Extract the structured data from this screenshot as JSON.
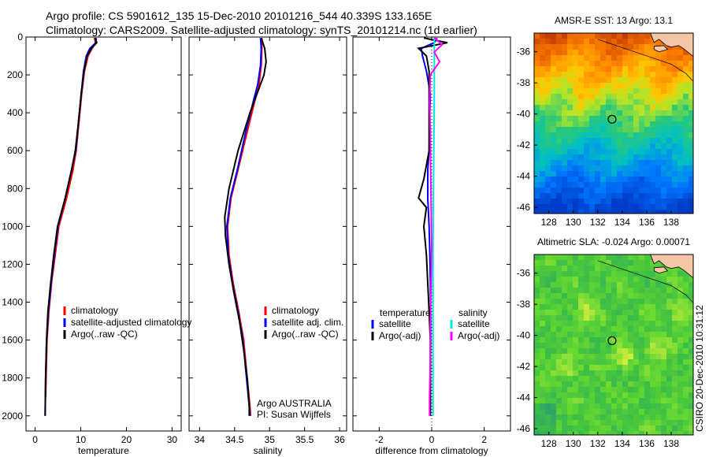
{
  "header": {
    "line1": "Argo profile: CS 5901612_135 15-Dec-2010 20101216_544 40.339S 133.165E",
    "line2": "Climatology: CARS2009. Satellite-adjusted climatology: synTS_20101214.nc (1d earlier)"
  },
  "stamp": "CSIRO 20-Dec-2010 10:31:12",
  "chart_data": [
    {
      "id": "temperature",
      "type": "line",
      "xlabel": "temperature",
      "ylabel": "",
      "xlim": [
        -2,
        32
      ],
      "ylim": [
        2080,
        0
      ],
      "y_inverted": true,
      "xticks": [
        0,
        10,
        20,
        30
      ],
      "yticks": [
        0,
        200,
        400,
        600,
        800,
        1000,
        1200,
        1400,
        1600,
        1800,
        2000
      ],
      "legend": {
        "placement": "lower-right",
        "entries": [
          "climatology",
          "satellite-adjusted climatology",
          "Argo(..raw -QC)"
        ]
      },
      "series": [
        {
          "name": "climatology",
          "color": "#ff0000",
          "points": [
            [
              13.0,
              5
            ],
            [
              13.2,
              30
            ],
            [
              12.5,
              60
            ],
            [
              11.6,
              100
            ],
            [
              10.8,
              180
            ],
            [
              10.2,
              300
            ],
            [
              9.6,
              450
            ],
            [
              9.0,
              600
            ],
            [
              8.3,
              700
            ],
            [
              6.9,
              850
            ],
            [
              5.2,
              1000
            ],
            [
              4.4,
              1150
            ],
            [
              3.6,
              1300
            ],
            [
              3.0,
              1450
            ],
            [
              2.6,
              1600
            ],
            [
              2.4,
              1800
            ],
            [
              2.3,
              1900
            ]
          ]
        },
        {
          "name": "satellite-adjusted climatology",
          "color": "#0000ff",
          "points": [
            [
              13.4,
              5
            ],
            [
              13.3,
              30
            ],
            [
              12.0,
              60
            ],
            [
              11.2,
              100
            ],
            [
              10.6,
              180
            ],
            [
              10.1,
              300
            ],
            [
              9.5,
              450
            ],
            [
              8.9,
              600
            ],
            [
              8.0,
              700
            ],
            [
              6.6,
              850
            ],
            [
              5.0,
              1000
            ],
            [
              4.2,
              1150
            ],
            [
              3.5,
              1300
            ],
            [
              2.9,
              1450
            ],
            [
              2.5,
              1600
            ],
            [
              2.3,
              1800
            ],
            [
              2.2,
              2000
            ]
          ]
        },
        {
          "name": "Argo(..raw -QC)",
          "color": "#000000",
          "points": [
            [
              13.1,
              5
            ],
            [
              13.5,
              30
            ],
            [
              12.3,
              60
            ],
            [
              11.4,
              100
            ],
            [
              10.7,
              180
            ],
            [
              10.1,
              300
            ],
            [
              9.5,
              450
            ],
            [
              8.8,
              600
            ],
            [
              8.0,
              700
            ],
            [
              6.6,
              850
            ],
            [
              4.9,
              1000
            ],
            [
              4.1,
              1150
            ],
            [
              3.4,
              1300
            ],
            [
              2.8,
              1450
            ],
            [
              2.5,
              1600
            ],
            [
              2.3,
              1800
            ],
            [
              2.2,
              2000
            ]
          ]
        }
      ]
    },
    {
      "id": "salinity",
      "type": "line",
      "xlabel": "salinity",
      "ylabel": "",
      "xlim": [
        33.85,
        36.1
      ],
      "ylim": [
        2080,
        0
      ],
      "y_inverted": true,
      "xticks": [
        34,
        34.5,
        35,
        35.5,
        36
      ],
      "xticklabels": [
        "34",
        "34.5",
        "35",
        "35.5",
        "36"
      ],
      "legend": {
        "placement": "lower-right",
        "entries": [
          "climatology",
          "satellite adj. clim.",
          "Argo(..raw -QC)"
        ]
      },
      "annotations": [
        "Argo AUSTRALIA",
        "PI: Susan Wijffels"
      ],
      "series": [
        {
          "name": "climatology",
          "color": "#ff0000",
          "points": [
            [
              34.89,
              5
            ],
            [
              34.89,
              60
            ],
            [
              34.88,
              150
            ],
            [
              34.85,
              250
            ],
            [
              34.78,
              350
            ],
            [
              34.68,
              500
            ],
            [
              34.55,
              700
            ],
            [
              34.45,
              850
            ],
            [
              34.4,
              1000
            ],
            [
              34.42,
              1150
            ],
            [
              34.48,
              1300
            ],
            [
              34.56,
              1450
            ],
            [
              34.63,
              1600
            ],
            [
              34.68,
              1800
            ],
            [
              34.72,
              1950
            ],
            [
              34.73,
              2000
            ]
          ]
        },
        {
          "name": "satellite adj. clim.",
          "color": "#0000ff",
          "points": [
            [
              34.87,
              5
            ],
            [
              34.88,
              60
            ],
            [
              34.87,
              150
            ],
            [
              34.83,
              250
            ],
            [
              34.76,
              350
            ],
            [
              34.66,
              500
            ],
            [
              34.54,
              700
            ],
            [
              34.44,
              850
            ],
            [
              34.39,
              1000
            ],
            [
              34.41,
              1150
            ],
            [
              34.47,
              1300
            ],
            [
              34.55,
              1450
            ],
            [
              34.62,
              1600
            ],
            [
              34.67,
              1800
            ],
            [
              34.71,
              1950
            ],
            [
              34.72,
              2000
            ]
          ]
        },
        {
          "name": "Argo(..raw -QC)",
          "color": "#000000",
          "points": [
            [
              34.88,
              5
            ],
            [
              34.93,
              60
            ],
            [
              34.95,
              130
            ],
            [
              34.92,
              200
            ],
            [
              34.84,
              280
            ],
            [
              34.72,
              400
            ],
            [
              34.55,
              600
            ],
            [
              34.42,
              800
            ],
            [
              34.36,
              950
            ],
            [
              34.37,
              1050
            ],
            [
              34.42,
              1200
            ],
            [
              34.49,
              1350
            ],
            [
              34.57,
              1500
            ],
            [
              34.63,
              1650
            ],
            [
              34.68,
              1800
            ],
            [
              34.71,
              1950
            ],
            [
              34.71,
              2000
            ]
          ]
        }
      ]
    },
    {
      "id": "difference",
      "type": "line",
      "xlabel": "difference from climatology",
      "ylabel": "",
      "xlim": [
        -3.0,
        3.0
      ],
      "ylim": [
        2080,
        0
      ],
      "y_inverted": true,
      "xticks": [
        -2,
        0,
        2
      ],
      "legend": {
        "placement": "lower-center",
        "headers": [
          "temperature",
          "salinity"
        ],
        "entries": [
          "satellite",
          "Argo(-adj)",
          "satellite",
          "Argo(-adj)"
        ]
      },
      "zero_line": "dotted",
      "series": [
        {
          "name": "satellite",
          "quantity": "temperature",
          "color": "#0000ff",
          "points": [
            [
              0.2,
              5
            ],
            [
              0.1,
              30
            ],
            [
              -0.4,
              60
            ],
            [
              -0.35,
              100
            ],
            [
              -0.2,
              180
            ],
            [
              -0.05,
              300
            ],
            [
              -0.08,
              450
            ],
            [
              -0.1,
              600
            ],
            [
              -0.15,
              700
            ],
            [
              -0.15,
              850
            ],
            [
              -0.1,
              1000
            ],
            [
              -0.07,
              1150
            ],
            [
              -0.05,
              1300
            ],
            [
              -0.04,
              1450
            ],
            [
              -0.04,
              1600
            ],
            [
              -0.05,
              1800
            ],
            [
              -0.05,
              2000
            ]
          ]
        },
        {
          "name": "Argo(-adj)",
          "quantity": "temperature",
          "color": "#000000",
          "points": [
            [
              -0.3,
              5
            ],
            [
              0.6,
              30
            ],
            [
              -0.5,
              60
            ],
            [
              -0.2,
              100
            ],
            [
              -0.1,
              180
            ],
            [
              -0.1,
              300
            ],
            [
              -0.1,
              450
            ],
            [
              -0.1,
              600
            ],
            [
              -0.3,
              750
            ],
            [
              -0.5,
              850
            ],
            [
              -0.2,
              900
            ],
            [
              -0.3,
              1000
            ],
            [
              -0.2,
              1150
            ],
            [
              -0.15,
              1300
            ],
            [
              -0.1,
              1450
            ],
            [
              -0.05,
              1600
            ],
            [
              -0.05,
              1800
            ],
            [
              -0.05,
              2000
            ]
          ]
        },
        {
          "name": "satellite",
          "quantity": "salinity",
          "color": "#00e6e6",
          "points": [
            [
              0.1,
              5
            ],
            [
              0.1,
              100
            ],
            [
              0.1,
              300
            ],
            [
              0.08,
              600
            ],
            [
              0.06,
              900
            ],
            [
              0.05,
              1200
            ],
            [
              0.05,
              1500
            ],
            [
              0.05,
              1800
            ],
            [
              0.05,
              2000
            ]
          ]
        },
        {
          "name": "Argo(-adj)",
          "quantity": "salinity",
          "color": "#ff00ff",
          "points": [
            [
              0.1,
              5
            ],
            [
              0.4,
              40
            ],
            [
              0.1,
              80
            ],
            [
              0.3,
              130
            ],
            [
              -0.05,
              200
            ],
            [
              -0.08,
              350
            ],
            [
              -0.05,
              500
            ],
            [
              -0.04,
              700
            ],
            [
              -0.02,
              900
            ],
            [
              0.0,
              1100
            ],
            [
              -0.02,
              1300
            ],
            [
              -0.05,
              1500
            ],
            [
              -0.05,
              1700
            ],
            [
              -0.08,
              1900
            ],
            [
              -0.08,
              2000
            ]
          ]
        }
      ]
    },
    {
      "id": "sst-map",
      "type": "heatmap",
      "title": "AMSR-E SST: 13 Argo: 13.1",
      "xlim": [
        126.8,
        139.8
      ],
      "ylim": [
        -46.4,
        -34.8
      ],
      "xticks": [
        128,
        130,
        132,
        134,
        136,
        138
      ],
      "yticks": [
        -36,
        -38,
        -40,
        -42,
        -44,
        -46
      ],
      "marker": {
        "lon": 133.165,
        "lat": -40.339
      }
    },
    {
      "id": "sla-map",
      "type": "heatmap",
      "title": "Altimetric SLA: -0.024 Argo: 0.00071",
      "xlim": [
        126.8,
        139.8
      ],
      "ylim": [
        -46.4,
        -34.8
      ],
      "xticks": [
        128,
        130,
        132,
        134,
        136,
        138
      ],
      "yticks": [
        -36,
        -38,
        -40,
        -42,
        -44,
        -46
      ],
      "marker": {
        "lon": 133.165,
        "lat": -40.339
      }
    }
  ]
}
